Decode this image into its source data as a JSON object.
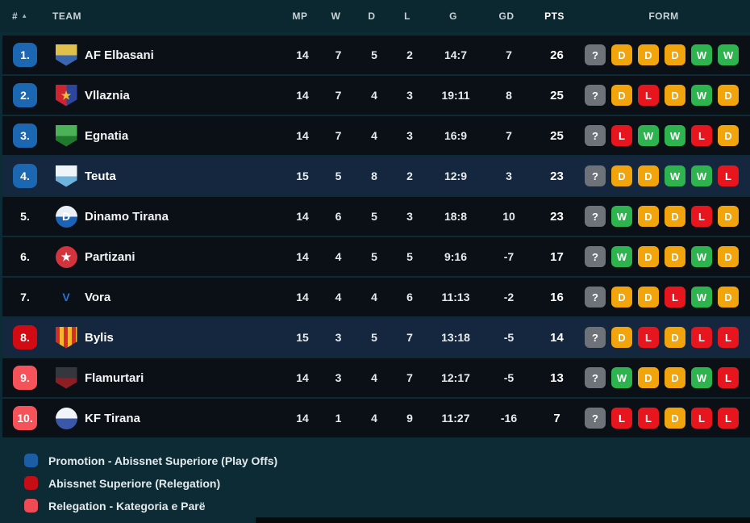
{
  "table": {
    "headers": {
      "pos": "#",
      "team": "TEAM",
      "mp": "MP",
      "w": "W",
      "d": "D",
      "l": "L",
      "g": "G",
      "gd": "GD",
      "pts": "PTS",
      "form": "FORM"
    },
    "sort_icon": "▲",
    "rows": [
      {
        "pos": "1.",
        "badge": "blue",
        "team": "AF Elbasani",
        "mp": "14",
        "w": "7",
        "d": "5",
        "l": "2",
        "g": "14:7",
        "gd": "7",
        "pts": "26",
        "form": [
          "?",
          "D",
          "D",
          "D",
          "W",
          "W"
        ],
        "highlight": false,
        "logo": {
          "shape": "shield",
          "pattern": "split-v",
          "colors": [
            "#dfc04a",
            "#3a66b0"
          ],
          "glyph": "",
          "glyph_color": "#ffffff"
        }
      },
      {
        "pos": "2.",
        "badge": "blue",
        "team": "Vllaznia",
        "mp": "14",
        "w": "7",
        "d": "4",
        "l": "3",
        "g": "19:11",
        "gd": "8",
        "pts": "25",
        "form": [
          "?",
          "D",
          "L",
          "D",
          "W",
          "D"
        ],
        "highlight": false,
        "logo": {
          "shape": "shield",
          "pattern": "split-h",
          "colors": [
            "#cf2430",
            "#2c469c"
          ],
          "glyph": "★",
          "glyph_color": "#e8c13a"
        }
      },
      {
        "pos": "3.",
        "badge": "blue",
        "team": "Egnatia",
        "mp": "14",
        "w": "7",
        "d": "4",
        "l": "3",
        "g": "16:9",
        "gd": "7",
        "pts": "25",
        "form": [
          "?",
          "L",
          "W",
          "W",
          "L",
          "D"
        ],
        "highlight": false,
        "logo": {
          "shape": "shield",
          "pattern": "split-v",
          "colors": [
            "#4cb257",
            "#1f7a2e"
          ],
          "glyph": "",
          "glyph_color": "#ffffff"
        }
      },
      {
        "pos": "4.",
        "badge": "blue",
        "team": "Teuta",
        "mp": "15",
        "w": "5",
        "d": "8",
        "l": "2",
        "g": "12:9",
        "gd": "3",
        "pts": "23",
        "form": [
          "?",
          "D",
          "D",
          "W",
          "W",
          "L"
        ],
        "highlight": true,
        "logo": {
          "shape": "shield",
          "pattern": "split-v",
          "colors": [
            "#eef4f8",
            "#6fb3dc"
          ],
          "glyph": "",
          "glyph_color": "#1b5fb0"
        }
      },
      {
        "pos": "5.",
        "badge": "none",
        "team": "Dinamo Tirana",
        "mp": "14",
        "w": "6",
        "d": "5",
        "l": "3",
        "g": "18:8",
        "gd": "10",
        "pts": "23",
        "form": [
          "?",
          "W",
          "D",
          "D",
          "L",
          "D"
        ],
        "highlight": false,
        "logo": {
          "shape": "circle",
          "pattern": "split-v",
          "colors": [
            "#e9eff5",
            "#1b63b8"
          ],
          "glyph": "D",
          "glyph_color": "#ffffff"
        }
      },
      {
        "pos": "6.",
        "badge": "none",
        "team": "Partizani",
        "mp": "14",
        "w": "4",
        "d": "5",
        "l": "5",
        "g": "9:16",
        "gd": "-7",
        "pts": "17",
        "form": [
          "?",
          "W",
          "D",
          "D",
          "W",
          "D"
        ],
        "highlight": false,
        "logo": {
          "shape": "circle",
          "pattern": "solid",
          "colors": [
            "#d3333c"
          ],
          "glyph": "★",
          "glyph_color": "#ffffff"
        }
      },
      {
        "pos": "7.",
        "badge": "none",
        "team": "Vora",
        "mp": "14",
        "w": "4",
        "d": "4",
        "l": "6",
        "g": "11:13",
        "gd": "-2",
        "pts": "16",
        "form": [
          "?",
          "D",
          "D",
          "L",
          "W",
          "D"
        ],
        "highlight": false,
        "logo": {
          "shape": "plain",
          "pattern": "none",
          "colors": [],
          "glyph": "V",
          "glyph_color": "#2f6fd0"
        }
      },
      {
        "pos": "8.",
        "badge": "red",
        "team": "Bylis",
        "mp": "15",
        "w": "3",
        "d": "5",
        "l": "7",
        "g": "13:18",
        "gd": "-5",
        "pts": "14",
        "form": [
          "?",
          "D",
          "L",
          "D",
          "L",
          "L"
        ],
        "highlight": true,
        "logo": {
          "shape": "shield",
          "pattern": "stripes",
          "colors": [
            "#d42b2b",
            "#f2b72b"
          ],
          "glyph": "",
          "glyph_color": "#ffffff"
        }
      },
      {
        "pos": "9.",
        "badge": "lightred",
        "team": "Flamurtari",
        "mp": "14",
        "w": "3",
        "d": "4",
        "l": "7",
        "g": "12:17",
        "gd": "-5",
        "pts": "13",
        "form": [
          "?",
          "W",
          "D",
          "D",
          "W",
          "L"
        ],
        "highlight": false,
        "logo": {
          "shape": "shield",
          "pattern": "split-v",
          "colors": [
            "#34383e",
            "#8f1d24"
          ],
          "glyph": "",
          "glyph_color": "#d3333c"
        }
      },
      {
        "pos": "10.",
        "badge": "lightred",
        "team": "KF Tirana",
        "mp": "14",
        "w": "1",
        "d": "4",
        "l": "9",
        "g": "11:27",
        "gd": "-16",
        "pts": "7",
        "form": [
          "?",
          "L",
          "L",
          "D",
          "L",
          "L"
        ],
        "highlight": false,
        "logo": {
          "shape": "circle",
          "pattern": "split-v",
          "colors": [
            "#f2f5f8",
            "#3a57a8"
          ],
          "glyph": "",
          "glyph_color": "#e8c13a"
        }
      }
    ]
  },
  "badge_colors": {
    "blue": "#1b67b2",
    "red": "#d20a14",
    "lightred": "#f5525a"
  },
  "form_colors": {
    "?": "#6e737a",
    "W": "#2eb44f",
    "D": "#f1a40b",
    "L": "#e7151d"
  },
  "legend": [
    {
      "color": "#1b5ea6",
      "label": "Promotion - Abissnet Superiore (Play Offs)"
    },
    {
      "color": "#c50d15",
      "label": "Abissnet Superiore (Relegation)"
    },
    {
      "color": "#f04b55",
      "label": "Relegation - Kategoria e Parë"
    }
  ]
}
